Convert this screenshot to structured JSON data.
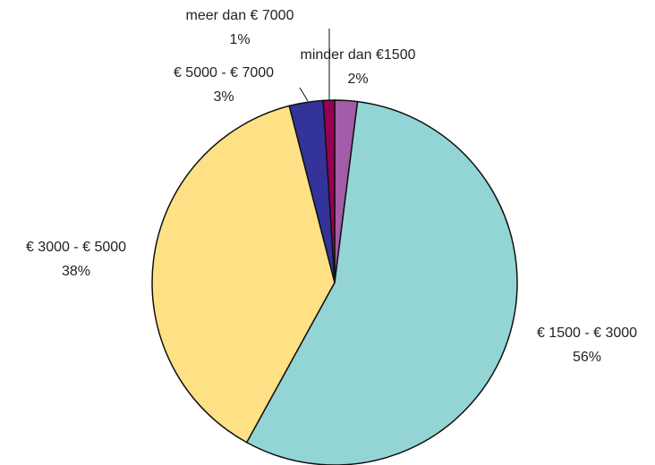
{
  "chart_data": {
    "type": "pie",
    "categories": [
      "minder dan  €1500",
      "€ 1500 - € 3000",
      "€ 3000 - € 5000",
      "€ 5000 - € 7000",
      "meer dan € 7000"
    ],
    "values": [
      2,
      56,
      38,
      3,
      1
    ],
    "value_labels": [
      "2%",
      "56%",
      "38%",
      "3%",
      "1%"
    ],
    "colors": [
      "#a35ca8",
      "#93d5d5",
      "#ffe185",
      "#333399",
      "#990055"
    ]
  }
}
